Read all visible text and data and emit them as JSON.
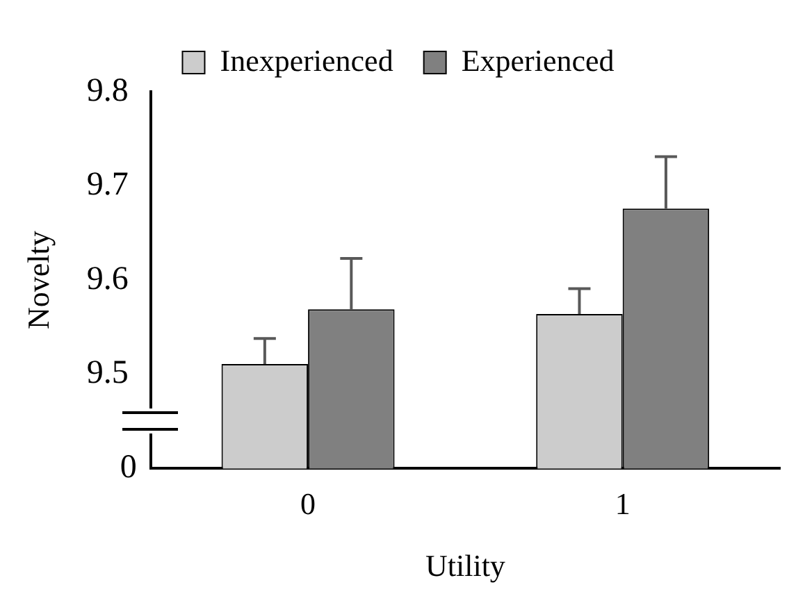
{
  "chart_data": {
    "type": "bar",
    "xlabel": "Utility",
    "ylabel": "Novelty",
    "categories": [
      "0",
      "1"
    ],
    "series": [
      {
        "name": "Inexperienced",
        "color": "#cccccc",
        "values": [
          9.511,
          9.564
        ],
        "errors": [
          [
            9.511,
            9.538
          ],
          [
            9.564,
            9.591
          ]
        ]
      },
      {
        "name": "Experienced",
        "color": "#808080",
        "values": [
          9.569,
          9.676
        ],
        "errors": [
          [
            9.569,
            9.623
          ],
          [
            9.676,
            9.731
          ]
        ]
      }
    ],
    "ylim": [
      9.4,
      9.8
    ],
    "yticks": [
      9.5,
      9.6,
      9.7,
      9.8
    ],
    "annotations": [
      "0"
    ],
    "grid": false,
    "legend": "top"
  }
}
